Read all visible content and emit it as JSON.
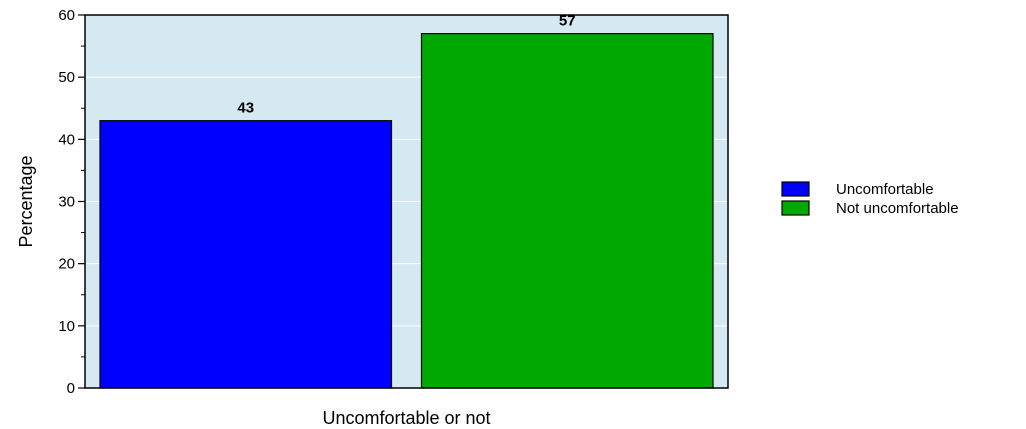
{
  "chart_data": {
    "type": "bar",
    "title": "",
    "xlabel": "Uncomfortable or not",
    "ylabel": "Percentage",
    "ylim": [
      0,
      60
    ],
    "yticks": [
      0,
      10,
      20,
      30,
      40,
      50,
      60
    ],
    "grid": true,
    "legend_position": "right",
    "plot_background": "#d4e9f1",
    "series": [
      {
        "name": "Uncomfortable",
        "value": 43,
        "label": "43",
        "color": "#0000ff"
      },
      {
        "name": "Not uncomfortable",
        "value": 57,
        "label": "57",
        "color": "#00a800"
      }
    ]
  }
}
